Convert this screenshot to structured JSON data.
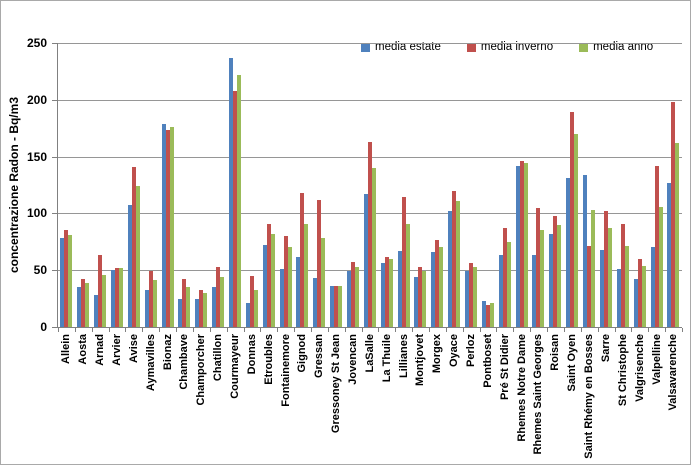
{
  "frame": {
    "background": "#FFFFFF",
    "border_color": "#A9A9A9"
  },
  "chart_data": {
    "type": "bar",
    "title": "",
    "xlabel": "",
    "ylabel": "concentrazione Radon - Bq/m3",
    "ylim": [
      0,
      250
    ],
    "yticks": [
      0,
      50,
      100,
      150,
      200,
      250
    ],
    "grid": true,
    "legend_position": "top",
    "categories": [
      "Allein",
      "Aosta",
      "Arnad",
      "Arvier",
      "Avise",
      "Aymavilles",
      "Bionaz",
      "Chambave",
      "Champorcher",
      "Chatillon",
      "Courmayeur",
      "Donnas",
      "Etroubles",
      "Fontainemore",
      "Gignod",
      "Gressan",
      "Gressoney St Jean",
      "Jovencan",
      "LaSalle",
      "La Thuile",
      "Lillianes",
      "Montjovet",
      "Morgex",
      "Oyace",
      "Perloz",
      "Pontboset",
      "Pré St Didier",
      "Rhemes Notre Dame",
      "Rhemes Saint Georges",
      "Roisan",
      "Saint Oyen",
      "Saint Rhémy en Bosses",
      "Sarre",
      "St Christophe",
      "Valgrisenche",
      "Valpelline",
      "Valsavarenche"
    ],
    "series": [
      {
        "name": "media estate",
        "color": "#4F81BD",
        "values": [
          78,
          35,
          28,
          50,
          107,
          33,
          179,
          25,
          25,
          35,
          237,
          21,
          72,
          51,
          62,
          43,
          36,
          49,
          117,
          56,
          67,
          44,
          66,
          102,
          49,
          23,
          63,
          142,
          63,
          82,
          131,
          134,
          68,
          51,
          42,
          70,
          127
        ]
      },
      {
        "name": "media inverno",
        "color": "#C0504D",
        "values": [
          85,
          42,
          63,
          52,
          141,
          49,
          173,
          42,
          33,
          53,
          208,
          45,
          91,
          80,
          118,
          112,
          36,
          57,
          163,
          62,
          114,
          53,
          77,
          120,
          56,
          19,
          87,
          146,
          105,
          98,
          189,
          71,
          102,
          91,
          60,
          142,
          198
        ]
      },
      {
        "name": "media anno",
        "color": "#9BBB59",
        "values": [
          81,
          39,
          46,
          52,
          124,
          41,
          176,
          35,
          30,
          44,
          222,
          33,
          82,
          70,
          91,
          78,
          36,
          53,
          140,
          60,
          91,
          49,
          70,
          111,
          53,
          21,
          75,
          144,
          85,
          90,
          170,
          103,
          87,
          71,
          54,
          106,
          162
        ]
      }
    ],
    "colors": {
      "gridline": "#969696",
      "axis": "#808080",
      "text": "#000000"
    }
  }
}
